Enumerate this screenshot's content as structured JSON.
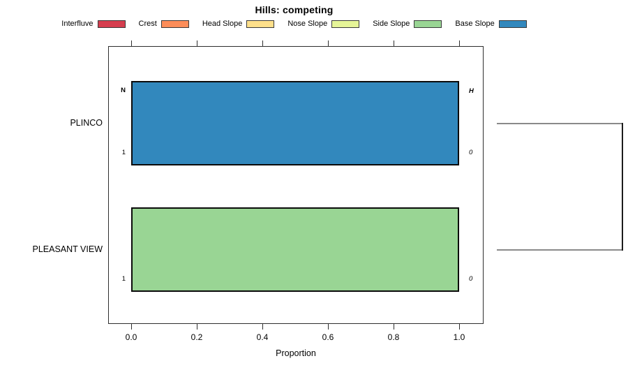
{
  "title": "Hills: competing",
  "legend": {
    "items": [
      {
        "label": "Interfluve",
        "color": "#D53E4F"
      },
      {
        "label": "Crest",
        "color": "#FC8D59"
      },
      {
        "label": "Head Slope",
        "color": "#FEE08B"
      },
      {
        "label": "Nose Slope",
        "color": "#E6F598"
      },
      {
        "label": "Side Slope",
        "color": "#99D594"
      },
      {
        "label": "Base Slope",
        "color": "#3288BD"
      }
    ]
  },
  "chart_data": {
    "type": "bar",
    "orientation": "horizontal",
    "stacked": true,
    "title": "Hills: competing",
    "xlabel": "Proportion",
    "xlim": [
      0.0,
      1.0
    ],
    "x_ticks": [
      "0.0",
      "0.2",
      "0.4",
      "0.6",
      "0.8",
      "1.0"
    ],
    "grid": false,
    "legend_position": "top",
    "categories": [
      "PLINCO",
      "PLEASANT VIEW"
    ],
    "series": [
      {
        "name": "Interfluve",
        "color": "#D53E4F",
        "values": [
          0,
          0
        ]
      },
      {
        "name": "Crest",
        "color": "#FC8D59",
        "values": [
          0,
          0
        ]
      },
      {
        "name": "Head Slope",
        "color": "#FEE08B",
        "values": [
          0,
          0
        ]
      },
      {
        "name": "Nose Slope",
        "color": "#E6F598",
        "values": [
          0,
          0
        ]
      },
      {
        "name": "Side Slope",
        "color": "#99D594",
        "values": [
          0,
          1.0
        ]
      },
      {
        "name": "Base Slope",
        "color": "#3288BD",
        "values": [
          1.0,
          0
        ]
      }
    ],
    "rows": [
      {
        "label": "PLINCO",
        "segments": [
          {
            "name": "Base Slope",
            "value": 1.0,
            "color": "#3288BD"
          }
        ],
        "annotations": {
          "top_left": "N",
          "top_right": "H",
          "bottom_left": "1",
          "bottom_right": "0"
        }
      },
      {
        "label": "PLEASANT VIEW",
        "segments": [
          {
            "name": "Side Slope",
            "value": 1.0,
            "color": "#99D594"
          }
        ],
        "annotations": {
          "top_left": "",
          "top_right": "",
          "bottom_left": "1",
          "bottom_right": "0"
        }
      }
    ],
    "dendrogram": {
      "leaves": [
        "PLINCO",
        "PLEASANT VIEW"
      ],
      "joins": [
        {
          "members": [
            "PLINCO",
            "PLEASANT VIEW"
          ],
          "height": 1.0
        }
      ]
    }
  }
}
